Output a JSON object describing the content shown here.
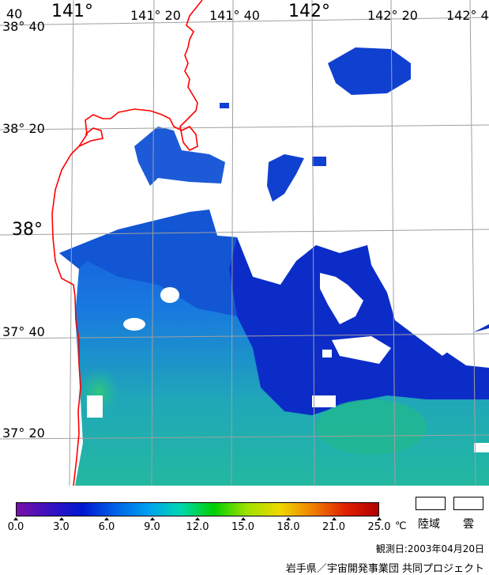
{
  "map": {
    "lon_labels": {
      "lon_140_40": "40",
      "lon_141": "141°",
      "lon_141_20": "141° 20",
      "lon_141_40": "141° 40",
      "lon_142": "142°",
      "lon_142_20": "142° 20",
      "lon_142_40": "142° 4"
    },
    "lat_labels": {
      "lat_38_40": "38° 40",
      "lat_38_20": "38° 20",
      "lat_38": "38°",
      "lat_37_40": "37° 40",
      "lat_37_20": "37° 20"
    },
    "colors": {
      "land": "#ffffff",
      "coastline": "#ff0000",
      "graticule": "#a0a0a0",
      "cloud": "#ffffff",
      "sst_cold": "#0828c8",
      "sst_mid": "#1870e0",
      "sst_warm": "#20b8a0"
    }
  },
  "colorbar": {
    "unit": "℃",
    "ticks": [
      "0.0",
      "3.0",
      "6.0",
      "9.0",
      "12.0",
      "15.0",
      "18.0",
      "21.0",
      "25.0"
    ],
    "colors": [
      "#7a10a8",
      "#3a10c0",
      "#0018d0",
      "#0060e8",
      "#00a0f0",
      "#00d8b0",
      "#00d000",
      "#a0e000",
      "#f0d800",
      "#f08000",
      "#e02000",
      "#b00000"
    ]
  },
  "legend": {
    "land_label": "陸域",
    "cloud_label": "雲"
  },
  "footer": {
    "observation_date": "観測日:2003年04月20日",
    "credit": "岩手県／宇宙開発事業団 共同プロジェクト"
  }
}
